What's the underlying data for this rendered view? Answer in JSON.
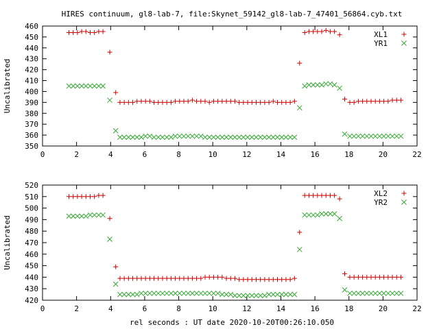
{
  "title": "HIRES continuum, gl8-lab-7, file:Skynet_59142_gl8-lab-7_47401_56864.cyb.txt",
  "xlabel": "rel seconds : UT date 2020-10-20T00:26:10.050",
  "colors": {
    "series_1": "#cc0000",
    "series_2": "#33aa33"
  },
  "chart_data": [
    {
      "type": "scatter",
      "ylabel": "Uncalibrated",
      "xlim": [
        0,
        22
      ],
      "ylim": [
        350,
        460
      ],
      "xticks": [
        0,
        2,
        4,
        6,
        8,
        10,
        12,
        14,
        16,
        18,
        20,
        22
      ],
      "yticks": [
        350,
        360,
        370,
        380,
        390,
        400,
        410,
        420,
        430,
        440,
        450,
        460
      ],
      "legend_position": "top-right",
      "series": [
        {
          "name": "XL1",
          "marker": "plus",
          "x": [
            1.55,
            1.8,
            2.05,
            2.3,
            2.55,
            2.8,
            3.05,
            3.3,
            3.55,
            3.95,
            4.3,
            4.55,
            4.8,
            5.05,
            5.3,
            5.55,
            5.8,
            6.05,
            6.3,
            6.55,
            6.8,
            7.05,
            7.3,
            7.55,
            7.8,
            8.05,
            8.3,
            8.55,
            8.8,
            9.05,
            9.3,
            9.55,
            9.8,
            10.05,
            10.3,
            10.55,
            10.8,
            11.05,
            11.3,
            11.55,
            11.8,
            12.05,
            12.3,
            12.55,
            12.8,
            13.05,
            13.3,
            13.55,
            13.8,
            14.05,
            14.3,
            14.55,
            14.8,
            15.1,
            15.4,
            15.65,
            15.9,
            16.15,
            16.4,
            16.65,
            16.9,
            17.15,
            17.45,
            17.75,
            18.05,
            18.3,
            18.55,
            18.8,
            19.05,
            19.3,
            19.55,
            19.8,
            20.05,
            20.3,
            20.55,
            20.8,
            21.05
          ],
          "y": [
            454,
            454,
            454,
            455,
            455,
            454,
            454,
            455,
            455,
            436,
            399,
            390,
            390,
            390,
            390,
            391,
            391,
            391,
            391,
            390,
            390,
            390,
            390,
            390,
            391,
            391,
            391,
            391,
            392,
            391,
            391,
            391,
            390,
            391,
            391,
            391,
            391,
            391,
            391,
            390,
            390,
            390,
            390,
            390,
            390,
            390,
            390,
            391,
            390,
            390,
            390,
            390,
            391,
            426,
            454,
            455,
            455,
            455,
            455,
            456,
            455,
            455,
            452,
            393,
            390,
            390,
            391,
            391,
            391,
            391,
            391,
            391,
            391,
            391,
            392,
            392,
            392
          ]
        },
        {
          "name": "YR1",
          "marker": "cross",
          "x": [
            1.55,
            1.8,
            2.05,
            2.3,
            2.55,
            2.8,
            3.05,
            3.3,
            3.55,
            3.95,
            4.3,
            4.55,
            4.8,
            5.05,
            5.3,
            5.55,
            5.8,
            6.05,
            6.3,
            6.55,
            6.8,
            7.05,
            7.3,
            7.55,
            7.8,
            8.05,
            8.3,
            8.55,
            8.8,
            9.05,
            9.3,
            9.55,
            9.8,
            10.05,
            10.3,
            10.55,
            10.8,
            11.05,
            11.3,
            11.55,
            11.8,
            12.05,
            12.3,
            12.55,
            12.8,
            13.05,
            13.3,
            13.55,
            13.8,
            14.05,
            14.3,
            14.55,
            14.8,
            15.1,
            15.4,
            15.65,
            15.9,
            16.15,
            16.4,
            16.65,
            16.9,
            17.15,
            17.45,
            17.75,
            18.05,
            18.3,
            18.55,
            18.8,
            19.05,
            19.3,
            19.55,
            19.8,
            20.05,
            20.3,
            20.55,
            20.8,
            21.05
          ],
          "y": [
            405,
            405,
            405,
            405,
            405,
            405,
            405,
            405,
            405,
            392,
            364,
            358,
            358,
            358,
            358,
            358,
            358,
            359,
            359,
            358,
            358,
            358,
            358,
            358,
            359,
            359,
            359,
            359,
            359,
            359,
            359,
            358,
            358,
            358,
            358,
            358,
            358,
            358,
            358,
            358,
            358,
            358,
            358,
            358,
            358,
            358,
            358,
            358,
            358,
            358,
            358,
            358,
            358,
            385,
            405,
            406,
            406,
            406,
            406,
            407,
            407,
            406,
            403,
            361,
            359,
            359,
            359,
            359,
            359,
            359,
            359,
            359,
            359,
            359,
            359,
            359,
            359
          ]
        }
      ]
    },
    {
      "type": "scatter",
      "ylabel": "Uncalibrated",
      "xlabel": "rel seconds : UT date 2020-10-20T00:26:10.050",
      "xlim": [
        0,
        22
      ],
      "ylim": [
        420,
        520
      ],
      "xticks": [
        0,
        2,
        4,
        6,
        8,
        10,
        12,
        14,
        16,
        18,
        20,
        22
      ],
      "yticks": [
        420,
        430,
        440,
        450,
        460,
        470,
        480,
        490,
        500,
        510,
        520
      ],
      "legend_position": "top-right",
      "series": [
        {
          "name": "XL2",
          "marker": "plus",
          "x": [
            1.55,
            1.8,
            2.05,
            2.3,
            2.55,
            2.8,
            3.05,
            3.3,
            3.55,
            3.95,
            4.3,
            4.55,
            4.8,
            5.05,
            5.3,
            5.55,
            5.8,
            6.05,
            6.3,
            6.55,
            6.8,
            7.05,
            7.3,
            7.55,
            7.8,
            8.05,
            8.3,
            8.55,
            8.8,
            9.05,
            9.3,
            9.55,
            9.8,
            10.05,
            10.3,
            10.55,
            10.8,
            11.05,
            11.3,
            11.55,
            11.8,
            12.05,
            12.3,
            12.55,
            12.8,
            13.05,
            13.3,
            13.55,
            13.8,
            14.05,
            14.3,
            14.55,
            14.8,
            15.1,
            15.4,
            15.65,
            15.9,
            16.15,
            16.4,
            16.65,
            16.9,
            17.15,
            17.45,
            17.75,
            18.05,
            18.3,
            18.55,
            18.8,
            19.05,
            19.3,
            19.55,
            19.8,
            20.05,
            20.3,
            20.55,
            20.8,
            21.05
          ],
          "y": [
            510,
            510,
            510,
            510,
            510,
            510,
            510,
            511,
            511,
            491,
            449,
            439,
            439,
            439,
            439,
            439,
            439,
            439,
            439,
            439,
            439,
            439,
            439,
            439,
            439,
            439,
            439,
            439,
            439,
            439,
            439,
            440,
            440,
            440,
            440,
            440,
            439,
            439,
            439,
            438,
            438,
            438,
            438,
            438,
            438,
            438,
            438,
            438,
            438,
            438,
            438,
            438,
            439,
            479,
            511,
            511,
            511,
            511,
            511,
            511,
            511,
            511,
            508,
            443,
            440,
            440,
            440,
            440,
            440,
            440,
            440,
            440,
            440,
            440,
            440,
            440,
            440
          ]
        },
        {
          "name": "YR2",
          "marker": "cross",
          "x": [
            1.55,
            1.8,
            2.05,
            2.3,
            2.55,
            2.8,
            3.05,
            3.3,
            3.55,
            3.95,
            4.3,
            4.55,
            4.8,
            5.05,
            5.3,
            5.55,
            5.8,
            6.05,
            6.3,
            6.55,
            6.8,
            7.05,
            7.3,
            7.55,
            7.8,
            8.05,
            8.3,
            8.55,
            8.8,
            9.05,
            9.3,
            9.55,
            9.8,
            10.05,
            10.3,
            10.55,
            10.8,
            11.05,
            11.3,
            11.55,
            11.8,
            12.05,
            12.3,
            12.55,
            12.8,
            13.05,
            13.3,
            13.55,
            13.8,
            14.05,
            14.3,
            14.55,
            14.8,
            15.1,
            15.4,
            15.65,
            15.9,
            16.15,
            16.4,
            16.65,
            16.9,
            17.15,
            17.45,
            17.75,
            18.05,
            18.3,
            18.55,
            18.8,
            19.05,
            19.3,
            19.55,
            19.8,
            20.05,
            20.3,
            20.55,
            20.8,
            21.05
          ],
          "y": [
            493,
            493,
            493,
            493,
            493,
            494,
            494,
            494,
            494,
            473,
            434,
            425,
            425,
            425,
            425,
            425,
            426,
            426,
            426,
            426,
            426,
            426,
            426,
            426,
            426,
            426,
            426,
            426,
            426,
            426,
            426,
            426,
            426,
            426,
            426,
            425,
            425,
            425,
            424,
            424,
            424,
            424,
            424,
            424,
            424,
            424,
            425,
            425,
            425,
            425,
            425,
            425,
            425,
            464,
            494,
            494,
            494,
            494,
            495,
            495,
            495,
            495,
            491,
            429,
            426,
            426,
            426,
            426,
            426,
            426,
            426,
            426,
            426,
            426,
            426,
            426,
            426
          ]
        }
      ]
    }
  ]
}
